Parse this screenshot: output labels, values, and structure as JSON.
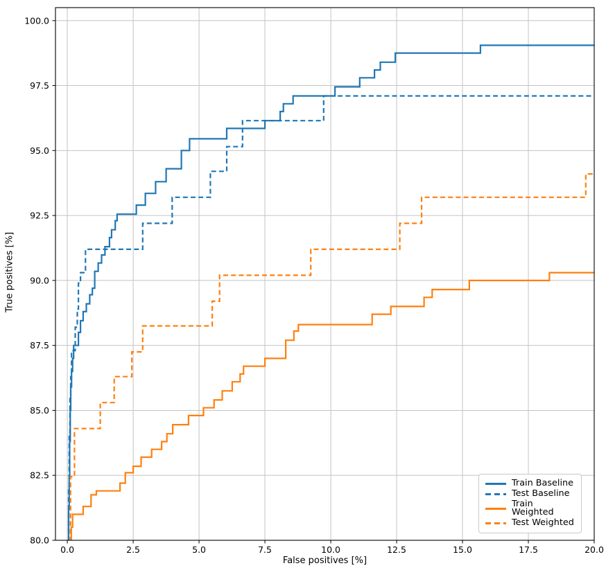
{
  "chart_data": {
    "type": "line",
    "subtype": "roc-step-curves",
    "title": "",
    "xlabel": "False positives [%]",
    "ylabel": "True positives [%]",
    "xlim": [
      -0.45,
      20
    ],
    "ylim": [
      80,
      100.5
    ],
    "grid": true,
    "legend": {
      "position": "lower right",
      "entries": [
        "Train Baseline",
        "Test Baseline",
        "Train Weighted",
        "Test Weighted"
      ]
    },
    "x_ticks": {
      "values": [
        0,
        2.5,
        5,
        7.5,
        10,
        12.5,
        15,
        17.5,
        20
      ],
      "labels": [
        "0.0",
        "2.5",
        "5.0",
        "7.5",
        "10.0",
        "12.5",
        "15.0",
        "17.5",
        "20.0"
      ]
    },
    "y_ticks": {
      "values": [
        80,
        82.5,
        85,
        87.5,
        90,
        92.5,
        95,
        97.5,
        100
      ],
      "labels": [
        "80.0",
        "82.5",
        "85.0",
        "87.5",
        "90.0",
        "92.5",
        "95.0",
        "97.5",
        "100.0"
      ]
    },
    "series": [
      {
        "name": "Train Baseline",
        "color": "#1f77b4",
        "linestyle": "solid",
        "points": [
          [
            0.03,
            80
          ],
          [
            0.05,
            81.2
          ],
          [
            0.07,
            82.5
          ],
          [
            0.09,
            83.8
          ],
          [
            0.11,
            85.0
          ],
          [
            0.13,
            85.9
          ],
          [
            0.16,
            86.5
          ],
          [
            0.2,
            87.0
          ],
          [
            0.24,
            87.5
          ],
          [
            0.42,
            88.0
          ],
          [
            0.5,
            88.45
          ],
          [
            0.6,
            88.8
          ],
          [
            0.72,
            89.1
          ],
          [
            0.85,
            89.45
          ],
          [
            0.95,
            89.7
          ],
          [
            1.04,
            90.35
          ],
          [
            1.17,
            90.67
          ],
          [
            1.3,
            90.98
          ],
          [
            1.43,
            91.3
          ],
          [
            1.6,
            91.65
          ],
          [
            1.68,
            91.95
          ],
          [
            1.82,
            92.3
          ],
          [
            1.89,
            92.55
          ],
          [
            2.62,
            92.9
          ],
          [
            2.96,
            93.35
          ],
          [
            3.35,
            93.8
          ],
          [
            3.75,
            94.3
          ],
          [
            4.33,
            95.0
          ],
          [
            4.64,
            95.45
          ],
          [
            6.05,
            95.85
          ],
          [
            7.5,
            96.15
          ],
          [
            8.08,
            96.5
          ],
          [
            8.2,
            96.8
          ],
          [
            8.57,
            97.1
          ],
          [
            10.16,
            97.45
          ],
          [
            11.1,
            97.8
          ],
          [
            11.66,
            98.1
          ],
          [
            11.88,
            98.4
          ],
          [
            12.45,
            98.75
          ],
          [
            15.68,
            99.05
          ],
          [
            20,
            99.05
          ]
        ]
      },
      {
        "name": "Test Baseline",
        "color": "#1f77b4",
        "linestyle": "dashed",
        "points": [
          [
            0.03,
            80
          ],
          [
            0.05,
            82.0
          ],
          [
            0.07,
            84.0
          ],
          [
            0.1,
            85.5
          ],
          [
            0.13,
            86.3
          ],
          [
            0.16,
            87.3
          ],
          [
            0.3,
            88.2
          ],
          [
            0.38,
            88.9
          ],
          [
            0.42,
            89.9
          ],
          [
            0.5,
            90.3
          ],
          [
            0.69,
            91.2
          ],
          [
            2.86,
            92.2
          ],
          [
            3.98,
            93.2
          ],
          [
            5.43,
            94.2
          ],
          [
            6.05,
            95.15
          ],
          [
            6.65,
            96.15
          ],
          [
            9.73,
            97.1
          ],
          [
            20,
            97.1
          ]
        ]
      },
      {
        "name": "Train Weighted",
        "color": "#ff7f0e",
        "linestyle": "solid",
        "points": [
          [
            0.1,
            80
          ],
          [
            0.15,
            80.5
          ],
          [
            0.2,
            81.0
          ],
          [
            0.6,
            81.3
          ],
          [
            0.9,
            81.75
          ],
          [
            1.1,
            81.9
          ],
          [
            2.0,
            82.2
          ],
          [
            2.2,
            82.6
          ],
          [
            2.5,
            82.85
          ],
          [
            2.8,
            83.2
          ],
          [
            3.2,
            83.5
          ],
          [
            3.58,
            83.8
          ],
          [
            3.78,
            84.1
          ],
          [
            4.0,
            84.45
          ],
          [
            4.6,
            84.8
          ],
          [
            5.17,
            85.1
          ],
          [
            5.57,
            85.4
          ],
          [
            5.88,
            85.75
          ],
          [
            6.26,
            86.1
          ],
          [
            6.56,
            86.4
          ],
          [
            6.69,
            86.7
          ],
          [
            7.5,
            87.0
          ],
          [
            8.29,
            87.7
          ],
          [
            8.6,
            88.05
          ],
          [
            8.77,
            88.3
          ],
          [
            11.57,
            88.7
          ],
          [
            12.28,
            89.0
          ],
          [
            13.54,
            89.35
          ],
          [
            13.85,
            89.65
          ],
          [
            15.26,
            90.0
          ],
          [
            18.3,
            90.3
          ],
          [
            20,
            90.3
          ]
        ]
      },
      {
        "name": "Test Weighted",
        "color": "#ff7f0e",
        "linestyle": "dashed",
        "points": [
          [
            0.07,
            80
          ],
          [
            0.12,
            82.45
          ],
          [
            0.27,
            84.3
          ],
          [
            1.25,
            85.3
          ],
          [
            1.78,
            86.3
          ],
          [
            2.45,
            87.25
          ],
          [
            2.86,
            88.25
          ],
          [
            5.5,
            89.2
          ],
          [
            5.78,
            90.2
          ],
          [
            9.24,
            91.2
          ],
          [
            12.62,
            92.2
          ],
          [
            13.45,
            93.2
          ],
          [
            19.68,
            94.1
          ],
          [
            20,
            94.1
          ]
        ]
      }
    ],
    "style": {
      "grid_color": "#c3c3c3",
      "spine_color": "#000000",
      "tick_color": "#000000",
      "text_color": "#000000",
      "line_width": 2.2,
      "dash_pattern": "7 4.2"
    }
  }
}
